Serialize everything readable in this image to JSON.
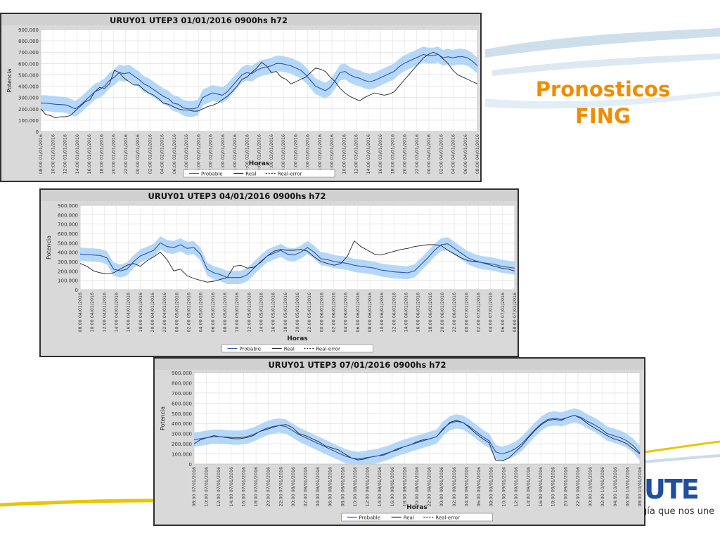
{
  "brand": {
    "title_line1": "Pronosticos",
    "title_line2": "FING",
    "logo_text": "UTE",
    "tagline": "gía que nos une",
    "accent_color": "#f08c00"
  },
  "legend_items": [
    "Probable",
    "Real",
    "Real-error"
  ],
  "colors": {
    "band": "#a9d1f7",
    "probable": "#2d4fb8",
    "real": "#222222"
  },
  "chart_data": [
    {
      "type": "line",
      "title": "URUY01  UTEP3  01/01/2016  0900hs  h72",
      "xlabel": "Horas",
      "ylabel": "Potencia",
      "ylim": [
        0,
        900000
      ],
      "y_ticks": [
        "0",
        "100.000",
        "200.000",
        "300.000",
        "400.000",
        "500.000",
        "600.000",
        "700.000",
        "800.000",
        "900.000"
      ],
      "x_ticks": [
        "08:00 01/01/2016",
        "10:00 01/01/2016",
        "12:00 01/01/2016",
        "14:00 01/01/2016",
        "16:00 01/01/2016",
        "18:00 01/01/2016",
        "20:00 01/01/2016",
        "22:00 01/01/2016",
        "00:00 02/01/2016",
        "02:00 02/01/2016",
        "04:00 02/01/2016",
        "06:00 02/01/2016",
        "08:00 02/01/2016",
        "10:00 02/01/2016",
        "12:00 02/01/2016",
        "14:00 02/01/2016",
        "16:00 02/01/2016",
        "18:00 02/01/2016",
        "20:00 02/01/2016",
        "22:00 02/01/2016",
        "00:00 03/01/2016",
        "02:00 03/01/2016",
        "04:00 03/01/2016",
        "06:00 03/01/2016",
        "08:00 03/01/2016",
        "10:00 03/01/2016",
        "12:00 03/01/2016",
        "14:00 03/01/2016",
        "16:00 03/01/2016",
        "18:00 03/01/2016",
        "20:00 03/01/2016",
        "22:00 03/01/2016",
        "00:00 04/01/2016",
        "02:00 04/01/2016",
        "04:00 04/01/2016",
        "06:00 04/01/2016",
        "08:00 04/01/2016"
      ],
      "grid": true,
      "legend": "bottom-center",
      "series": [
        {
          "name": "Probable",
          "values": [
            250000,
            250000,
            245000,
            240000,
            238000,
            235000,
            220000,
            200000,
            230000,
            270000,
            310000,
            350000,
            370000,
            400000,
            450000,
            480000,
            520000,
            510000,
            520000,
            490000,
            460000,
            420000,
            400000,
            370000,
            340000,
            310000,
            290000,
            250000,
            240000,
            210000,
            200000,
            200000,
            210000,
            300000,
            320000,
            340000,
            330000,
            320000,
            350000,
            400000,
            450000,
            500000,
            520000,
            510000,
            540000,
            560000,
            570000,
            580000,
            600000,
            600000,
            590000,
            580000,
            560000,
            540000,
            500000,
            450000,
            400000,
            380000,
            360000,
            390000,
            450000,
            520000,
            530000,
            500000,
            480000,
            470000,
            450000,
            440000,
            450000,
            470000,
            490000,
            510000,
            530000,
            570000,
            600000,
            620000,
            640000,
            660000,
            680000,
            670000,
            670000,
            680000,
            650000,
            660000,
            650000,
            660000,
            660000,
            650000,
            620000,
            580000
          ]
        },
        {
          "name": "Real",
          "values": [
            200000,
            150000,
            140000,
            120000,
            130000,
            130000,
            140000,
            180000,
            220000,
            260000,
            280000,
            350000,
            390000,
            380000,
            420000,
            540000,
            520000,
            470000,
            440000,
            410000,
            410000,
            370000,
            340000,
            320000,
            290000,
            250000,
            240000,
            220000,
            200000,
            190000,
            190000,
            180000,
            180000,
            200000,
            220000,
            230000,
            250000,
            280000,
            310000,
            350000,
            400000,
            460000,
            480000,
            520000,
            560000,
            610000,
            580000,
            520000,
            530000,
            480000,
            460000,
            420000,
            440000,
            460000,
            480000,
            520000,
            560000,
            550000,
            530000,
            480000,
            440000,
            380000,
            340000,
            310000,
            290000,
            270000,
            300000,
            320000,
            340000,
            330000,
            320000,
            330000,
            350000,
            400000,
            450000,
            500000,
            550000,
            600000,
            650000,
            680000,
            700000,
            680000,
            640000,
            600000,
            540000,
            500000,
            480000,
            460000,
            440000,
            420000
          ]
        }
      ]
    },
    {
      "type": "line",
      "title": "URUY01  UTEP3  04/01/2016  0900hs  h72",
      "xlabel": "Horas",
      "ylabel": "Potencia",
      "ylim": [
        0,
        900000
      ],
      "y_ticks": [
        "0",
        "100.000",
        "200.000",
        "300.000",
        "400.000",
        "500.000",
        "600.000",
        "700.000",
        "800.000",
        "900.000"
      ],
      "x_ticks": [
        "08:00 04/01/2016",
        "10:00 04/01/2016",
        "12:00 04/01/2016",
        "14:00 04/01/2016",
        "16:00 04/01/2016",
        "18:00 04/01/2016",
        "20:00 04/01/2016",
        "22:00 04/01/2016",
        "00:00 05/01/2016",
        "02:00 05/01/2016",
        "04:00 05/01/2016",
        "06:00 05/01/2016",
        "08:00 05/01/2016",
        "10:00 05/01/2016",
        "12:00 05/01/2016",
        "14:00 05/01/2016",
        "16:00 05/01/2016",
        "18:00 05/01/2016",
        "20:00 05/01/2016",
        "22:00 05/01/2016",
        "00:00 06/01/2016",
        "02:00 06/01/2016",
        "04:00 06/01/2016",
        "06:00 06/01/2016",
        "08:00 06/01/2016",
        "10:00 06/01/2016",
        "12:00 06/01/2016",
        "14:00 06/01/2016",
        "16:00 06/01/2016",
        "18:00 06/01/2016",
        "20:00 06/01/2016",
        "22:00 06/01/2016",
        "00:00 07/01/2016",
        "02:00 07/01/2016",
        "04:00 07/01/2016",
        "06:00 07/01/2016",
        "08:00 07/01/2016"
      ],
      "grid": true,
      "legend": "bottom-center",
      "series": [
        {
          "name": "Probable",
          "values": [
            380000,
            375000,
            370000,
            365000,
            340000,
            220000,
            200000,
            220000,
            300000,
            360000,
            390000,
            420000,
            500000,
            460000,
            450000,
            480000,
            440000,
            450000,
            380000,
            220000,
            180000,
            160000,
            130000,
            130000,
            130000,
            160000,
            230000,
            300000,
            360000,
            390000,
            420000,
            380000,
            370000,
            400000,
            450000,
            400000,
            330000,
            320000,
            300000,
            290000,
            280000,
            260000,
            250000,
            240000,
            230000,
            210000,
            200000,
            190000,
            185000,
            180000,
            200000,
            270000,
            340000,
            420000,
            480000,
            490000,
            440000,
            390000,
            340000,
            310000,
            290000,
            280000,
            270000,
            250000,
            240000,
            230000
          ]
        },
        {
          "name": "Real",
          "values": [
            280000,
            250000,
            200000,
            180000,
            170000,
            180000,
            220000,
            260000,
            280000,
            250000,
            310000,
            350000,
            400000,
            320000,
            200000,
            220000,
            150000,
            120000,
            100000,
            80000,
            90000,
            110000,
            130000,
            250000,
            260000,
            230000,
            240000,
            290000,
            360000,
            410000,
            430000,
            420000,
            420000,
            430000,
            410000,
            350000,
            300000,
            280000,
            260000,
            280000,
            360000,
            520000,
            460000,
            420000,
            380000,
            370000,
            390000,
            410000,
            430000,
            440000,
            460000,
            470000,
            480000,
            480000,
            470000,
            420000,
            380000,
            340000,
            310000,
            300000,
            290000,
            270000,
            250000,
            230000,
            220000,
            200000
          ]
        }
      ]
    },
    {
      "type": "line",
      "title": "URUY01  UTEP3  07/01/2016  0900hs  h72",
      "xlabel": "Horas",
      "ylabel": "Potencia",
      "ylim": [
        0,
        900000
      ],
      "y_ticks": [
        "0",
        "100.000",
        "200.000",
        "300.000",
        "400.000",
        "500.000",
        "600.000",
        "700.000",
        "800.000",
        "900.000"
      ],
      "x_ticks": [
        "08:00 07/01/2016",
        "10:00 07/01/2016",
        "12:00 07/01/2016",
        "14:00 07/01/2016",
        "16:00 07/01/2016",
        "18:00 07/01/2016",
        "20:00 07/01/2016",
        "22:00 07/01/2016",
        "00:00 08/01/2016",
        "02:00 08/01/2016",
        "04:00 08/01/2016",
        "06:00 08/01/2016",
        "08:00 08/01/2016",
        "10:00 08/01/2016",
        "12:00 08/01/2016",
        "14:00 08/01/2016",
        "16:00 08/01/2016",
        "18:00 08/01/2016",
        "20:00 08/01/2016",
        "22:00 08/01/2016",
        "00:00 09/01/2016",
        "02:00 09/01/2016",
        "04:00 09/01/2016",
        "06:00 09/01/2016",
        "08:00 09/01/2016",
        "10:00 09/01/2016",
        "12:00 09/01/2016",
        "14:00 09/01/2016",
        "16:00 09/01/2016",
        "18:00 09/01/2016",
        "20:00 09/01/2016",
        "22:00 09/01/2016",
        "00:00 10/01/2016",
        "02:00 10/01/2016",
        "04:00 10/01/2016",
        "06:00 10/01/2016",
        "08:00 10/01/2016"
      ],
      "grid": true,
      "legend": "bottom-center",
      "series": [
        {
          "name": "Probable",
          "values": [
            240000,
            250000,
            260000,
            270000,
            270000,
            265000,
            260000,
            260000,
            270000,
            290000,
            320000,
            350000,
            370000,
            380000,
            370000,
            330000,
            290000,
            260000,
            230000,
            200000,
            170000,
            140000,
            110000,
            80000,
            60000,
            50000,
            60000,
            70000,
            80000,
            100000,
            120000,
            150000,
            170000,
            190000,
            210000,
            230000,
            250000,
            270000,
            350000,
            400000,
            420000,
            410000,
            370000,
            320000,
            270000,
            230000,
            120000,
            100000,
            120000,
            150000,
            200000,
            270000,
            340000,
            400000,
            440000,
            450000,
            440000,
            460000,
            480000,
            460000,
            420000,
            390000,
            350000,
            300000,
            280000,
            260000,
            230000,
            180000,
            110000
          ]
        },
        {
          "name": "Real",
          "values": [
            200000,
            240000,
            260000,
            280000,
            270000,
            260000,
            250000,
            250000,
            260000,
            280000,
            320000,
            340000,
            360000,
            380000,
            390000,
            360000,
            300000,
            280000,
            250000,
            220000,
            180000,
            160000,
            140000,
            100000,
            60000,
            40000,
            50000,
            70000,
            80000,
            90000,
            120000,
            140000,
            170000,
            190000,
            220000,
            240000,
            250000,
            270000,
            340000,
            410000,
            430000,
            410000,
            360000,
            300000,
            250000,
            210000,
            40000,
            30000,
            60000,
            120000,
            180000,
            260000,
            330000,
            390000,
            430000,
            440000,
            430000,
            460000,
            480000,
            450000,
            400000,
            360000,
            320000,
            280000,
            250000,
            230000,
            200000,
            150000,
            100000
          ]
        }
      ]
    }
  ]
}
